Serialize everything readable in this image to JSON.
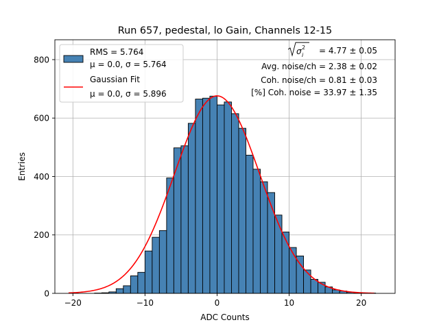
{
  "chart_data": {
    "type": "bar",
    "title": "Run 657, pedestal, lo Gain, Channels 12-15",
    "xlabel": "ADC Counts",
    "ylabel": "Entries",
    "xlim": [
      -22.5,
      24.7
    ],
    "ylim": [
      0,
      868
    ],
    "xticks": [
      -20,
      -10,
      0,
      10,
      20
    ],
    "yticks": [
      0,
      200,
      400,
      600,
      800
    ],
    "xtick_labels": [
      "−20",
      "−10",
      "0",
      "10",
      "20"
    ],
    "ytick_labels": [
      "0",
      "200",
      "400",
      "600",
      "800"
    ],
    "grid": true,
    "legend_position": "top-left",
    "bin_edges": [
      -17,
      -16,
      -15,
      -14,
      -13,
      -12,
      -11,
      -10,
      -9,
      -8,
      -7,
      -6,
      -5,
      -4,
      -3,
      -2,
      -1,
      0,
      1,
      2,
      3,
      4,
      5,
      6,
      7,
      8,
      9,
      10,
      11,
      12,
      13,
      14,
      15,
      16,
      17,
      18,
      19,
      20,
      21,
      22,
      23
    ],
    "counts": [
      1,
      2,
      5,
      16,
      26,
      60,
      72,
      145,
      192,
      215,
      395,
      498,
      505,
      582,
      665,
      668,
      675,
      645,
      655,
      615,
      565,
      473,
      425,
      382,
      345,
      268,
      210,
      157,
      128,
      80,
      48,
      38,
      22,
      12,
      8,
      4,
      2,
      1,
      1,
      0
    ],
    "series": [
      {
        "name": "RMS histogram",
        "type": "bar",
        "color": "#4682b4",
        "edge_color": "#000000",
        "legend": [
          "RMS = 5.764",
          "μ = 0.0, σ = 5.764"
        ]
      },
      {
        "name": "Gaussian Fit",
        "type": "line",
        "color": "#ff0000",
        "mu": 0.0,
        "sigma": 5.896,
        "amplitude": 676,
        "x_range": [
          -20.6,
          21.8
        ],
        "legend": [
          "Gaussian Fit",
          "μ = 0.0, σ = 5.896"
        ]
      }
    ],
    "annotations": {
      "line1_value": "= 4.77 ± 0.05",
      "line2": "Avg. noise/ch = 2.38 ± 0.02",
      "line3": "Coh. noise/ch = 0.81 ± 0.03",
      "line4": "[%] Coh. noise = 33.97 ± 1.35"
    }
  }
}
